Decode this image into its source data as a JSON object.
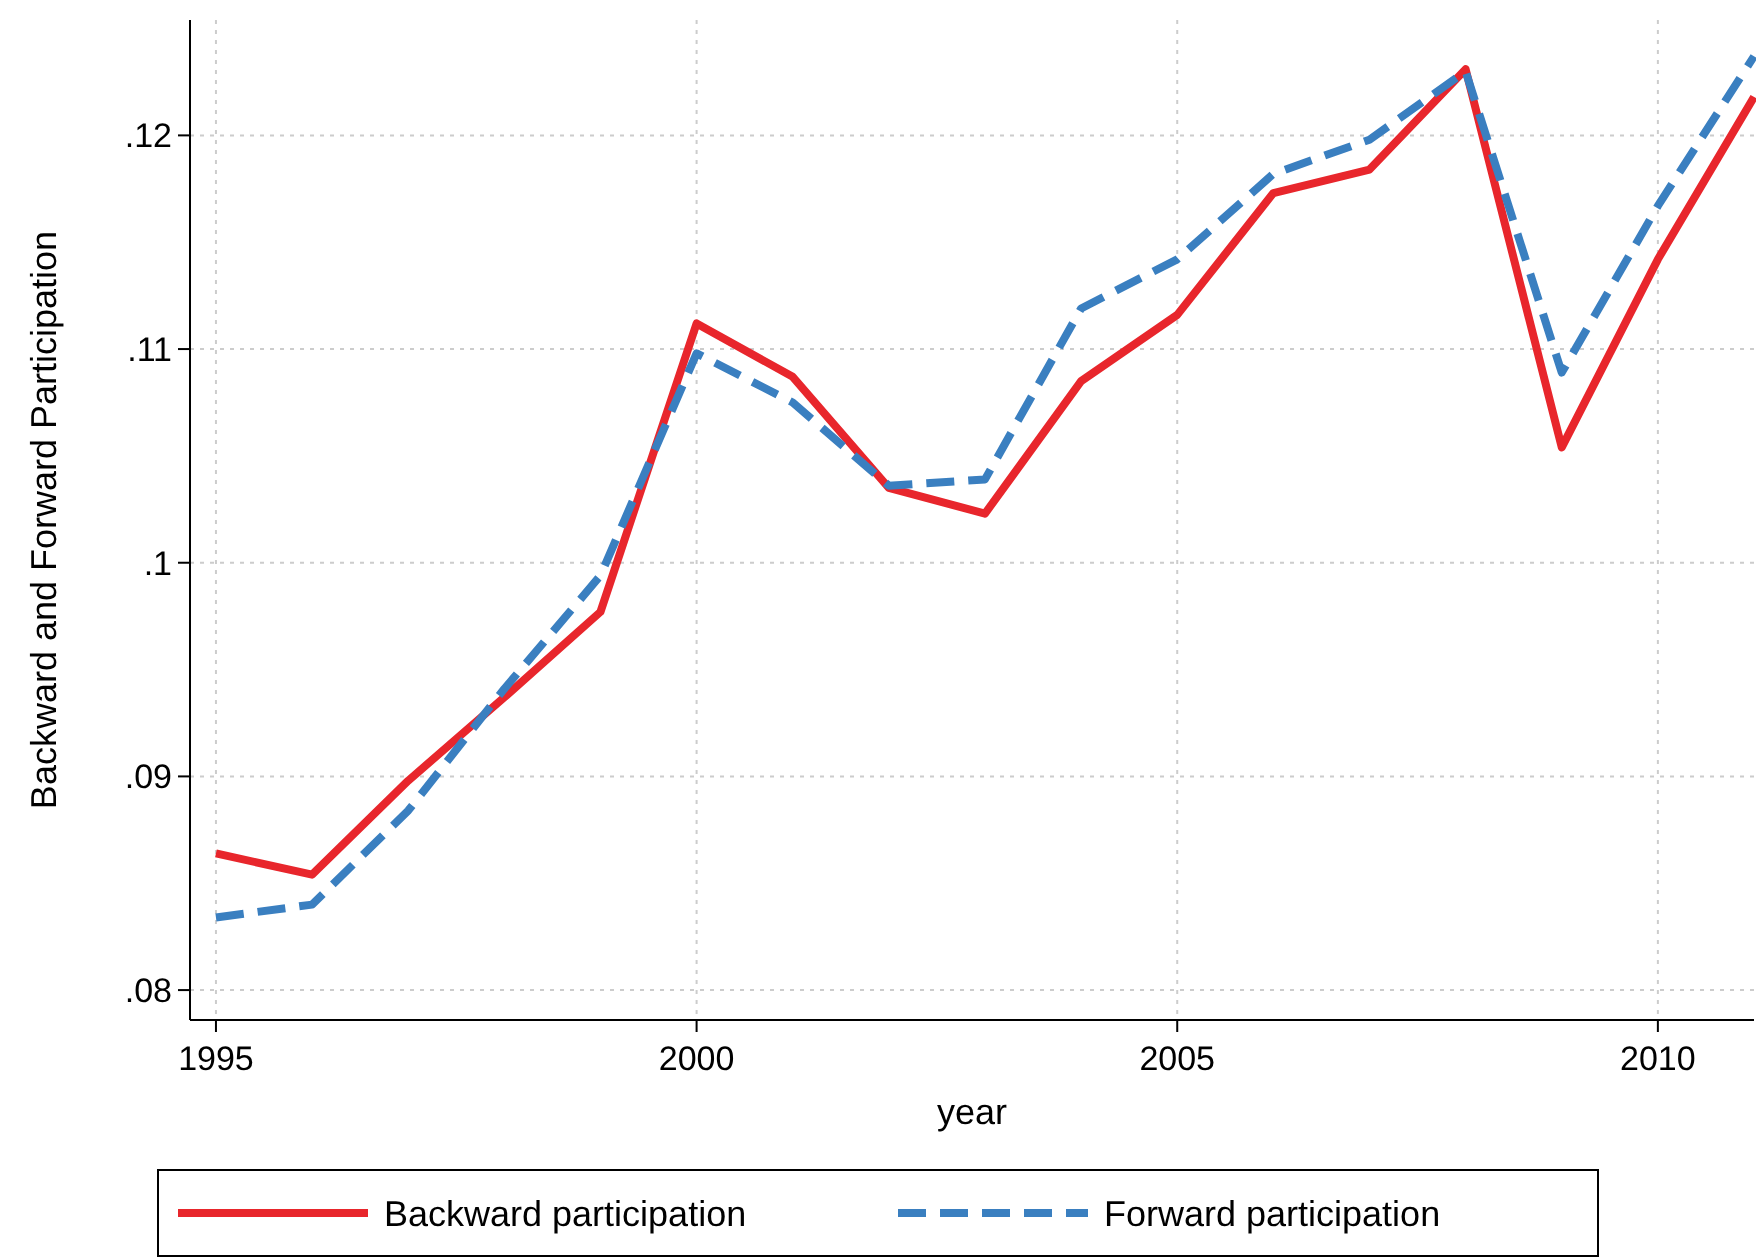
{
  "chart_data": {
    "type": "line",
    "xlabel": "year",
    "ylabel": "Backward and Forward Participation",
    "x": [
      1995,
      1996,
      1997,
      1998,
      1999,
      2000,
      2001,
      2002,
      2003,
      2004,
      2005,
      2006,
      2007,
      2008,
      2009,
      2010,
      2011
    ],
    "series": [
      {
        "name": "Backward participation",
        "color": "#e8262c",
        "line_style": "solid",
        "values": [
          0.0864,
          0.0854,
          0.0898,
          0.0937,
          0.0977,
          0.1112,
          0.1087,
          0.1035,
          0.1023,
          0.1085,
          0.1116,
          0.1173,
          0.1184,
          0.1231,
          0.1054,
          0.1142,
          0.1218
        ]
      },
      {
        "name": "Forward participation",
        "color": "#3a7fc0",
        "line_style": "dashed",
        "values": [
          0.0834,
          0.084,
          0.0884,
          0.0941,
          0.0994,
          0.1098,
          0.1075,
          0.1036,
          0.1039,
          0.1119,
          0.1142,
          0.1182,
          0.1198,
          0.123,
          0.1089,
          0.1167,
          0.1237
        ]
      }
    ],
    "xlim": [
      1994.73,
      2011
    ],
    "xticks": [
      1995,
      2000,
      2005,
      2010
    ],
    "ylim": [
      0.0786,
      0.1254
    ],
    "yticks": [
      {
        "value": 0.08,
        "label": ".08"
      },
      {
        "value": 0.09,
        "label": ".09"
      },
      {
        "value": 0.1,
        "label": ".1"
      },
      {
        "value": 0.11,
        "label": ".11"
      },
      {
        "value": 0.12,
        "label": ".12"
      }
    ],
    "grid": true,
    "legend": "bottom"
  }
}
